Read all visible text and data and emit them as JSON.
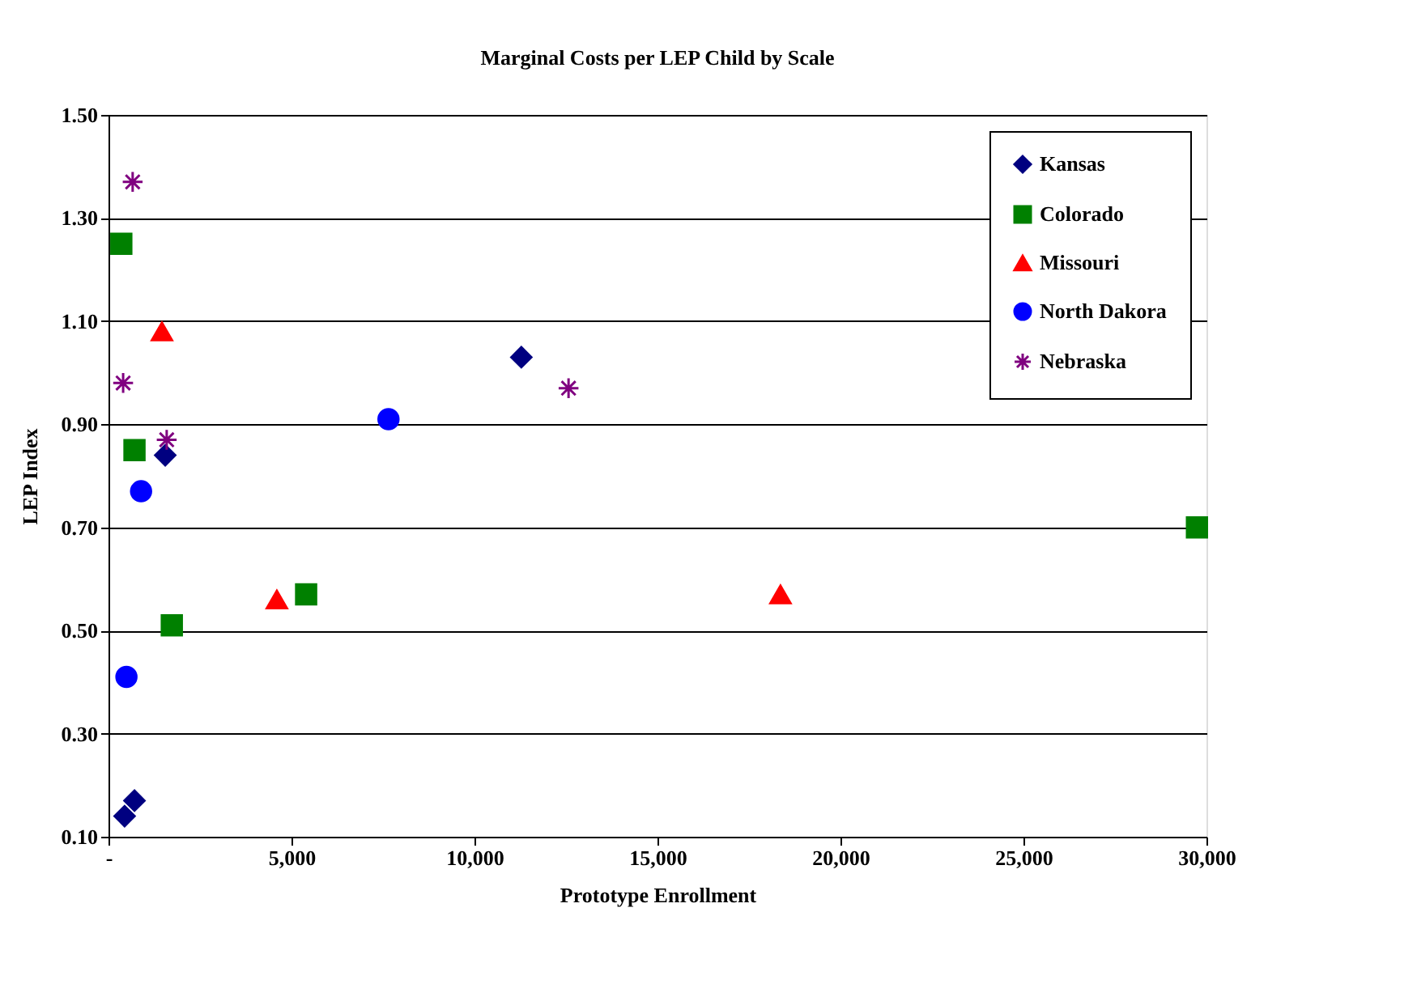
{
  "chart_data": {
    "type": "scatter",
    "title": "Marginal Costs per LEP Child by Scale",
    "xlabel": "Prototype Enrollment",
    "ylabel": "LEP Index",
    "xlim": [
      0,
      30000
    ],
    "xticks": [
      {
        "value": 0,
        "label": "-"
      },
      {
        "value": 5000,
        "label": "5,000"
      },
      {
        "value": 10000,
        "label": "10,000"
      },
      {
        "value": 15000,
        "label": "15,000"
      },
      {
        "value": 20000,
        "label": "20,000"
      },
      {
        "value": 25000,
        "label": "25,000"
      },
      {
        "value": 30000,
        "label": "30,000"
      }
    ],
    "ylim": [
      0.1,
      1.5
    ],
    "yticks": [
      {
        "value": 0.1,
        "label": "0.10"
      },
      {
        "value": 0.3,
        "label": "0.30"
      },
      {
        "value": 0.5,
        "label": "0.50"
      },
      {
        "value": 0.7,
        "label": "0.70"
      },
      {
        "value": 0.9,
        "label": "0.90"
      },
      {
        "value": 1.1,
        "label": "1.10"
      },
      {
        "value": 1.3,
        "label": "1.30"
      },
      {
        "value": 1.5,
        "label": "1.50"
      }
    ],
    "grid": "y",
    "legend": "top right",
    "series": [
      {
        "name": "Kansas",
        "color": "#000080",
        "marker": "diamond",
        "x": [
          1550,
          11280,
          440,
          710
        ],
        "values": [
          0.84,
          1.03,
          0.14,
          0.17
        ]
      },
      {
        "name": "Colorado",
        "color": "#008000",
        "marker": "square",
        "x": [
          350,
          710,
          1730,
          5400,
          29740
        ],
        "values": [
          1.25,
          0.85,
          0.51,
          0.57,
          0.7
        ]
      },
      {
        "name": "Missouri",
        "color": "#ff0000",
        "marker": "triangle",
        "x": [
          1460,
          4600,
          18360
        ],
        "values": [
          1.08,
          0.56,
          0.57
        ]
      },
      {
        "name": "North Dakora",
        "color": "#0000ff",
        "marker": "circle",
        "x": [
          890,
          490,
          7650
        ],
        "values": [
          0.77,
          0.41,
          0.91
        ]
      },
      {
        "name": "Nebraska",
        "color": "#800080",
        "marker": "cross",
        "x": [
          660,
          400,
          1590,
          12570
        ],
        "values": [
          1.37,
          0.98,
          0.87,
          0.97
        ]
      }
    ]
  }
}
